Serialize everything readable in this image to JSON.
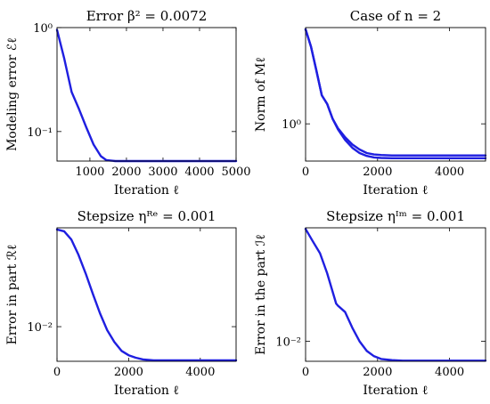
{
  "chart_data": [
    {
      "type": "line",
      "title": "Error β² = 0.0072",
      "xlabel": "Iteration ℓ",
      "ylabel": "Modeling error ℰℓ",
      "xscale": "linear",
      "yscale": "log",
      "xlim": [
        100,
        5000
      ],
      "ylim": [
        0.052,
        1
      ],
      "xticks": [
        1000,
        2000,
        3000,
        4000,
        5000
      ],
      "xtick_labels": [
        "1000",
        "2000",
        "3000",
        "4000",
        "5000"
      ],
      "yticks": [
        0.1,
        1
      ],
      "ytick_labels": [
        "10⁻¹",
        "10⁰"
      ],
      "grid": false,
      "color": "#1f1fe0",
      "series": [
        {
          "x": [
            100,
            300,
            500,
            700,
            900,
            1100,
            1300,
            1450,
            1700,
            2000,
            3000,
            4000,
            5000
          ],
          "y": [
            0.95,
            0.5,
            0.24,
            0.165,
            0.11,
            0.075,
            0.058,
            0.053,
            0.052,
            0.052,
            0.052,
            0.052,
            0.052
          ]
        }
      ]
    },
    {
      "type": "line",
      "title": "Case of n = 2",
      "xlabel": "Iteration ℓ",
      "ylabel": "Norm of Mℓ",
      "xscale": "linear",
      "yscale": "log",
      "xlim": [
        0,
        5000
      ],
      "ylim": [
        0.5,
        6
      ],
      "xticks": [
        0,
        2000,
        4000
      ],
      "xtick_labels": [
        "0",
        "2000",
        "4000"
      ],
      "yticks": [
        1
      ],
      "ytick_labels": [
        "10⁰"
      ],
      "grid": false,
      "color": "#1f1fe0",
      "series": [
        {
          "x": [
            0,
            150,
            300,
            450,
            600,
            750,
            900,
            1100,
            1300,
            1500,
            1700,
            1900,
            2100,
            2400,
            3000,
            4000,
            5000
          ],
          "y": [
            5.8,
            4.2,
            2.7,
            1.7,
            1.45,
            1.1,
            0.92,
            0.78,
            0.68,
            0.62,
            0.58,
            0.565,
            0.56,
            0.555,
            0.555,
            0.555,
            0.555
          ]
        },
        {
          "x": [
            0,
            150,
            300,
            450,
            600,
            750,
            900,
            1100,
            1300,
            1500,
            1700,
            1900,
            2100,
            2400,
            3000,
            4000,
            5000
          ],
          "y": [
            5.8,
            4.2,
            2.7,
            1.7,
            1.45,
            1.1,
            0.9,
            0.74,
            0.64,
            0.58,
            0.55,
            0.535,
            0.53,
            0.527,
            0.527,
            0.527,
            0.527
          ]
        }
      ]
    },
    {
      "type": "line",
      "title": "Stepsize ηᴿᵉ = 0.001",
      "xlabel": "Iteration ℓ",
      "ylabel": "Error in part ℛℓ",
      "xscale": "linear",
      "yscale": "log",
      "xlim": [
        0,
        5000
      ],
      "ylim": [
        0.0035,
        0.2
      ],
      "xticks": [
        0,
        2000,
        4000
      ],
      "xtick_labels": [
        "0",
        "2000",
        "4000"
      ],
      "yticks": [
        0.01
      ],
      "ytick_labels": [
        "10⁻²"
      ],
      "grid": false,
      "color": "#1f1fe0",
      "series": [
        {
          "x": [
            0,
            200,
            400,
            600,
            800,
            1000,
            1200,
            1400,
            1600,
            1800,
            2000,
            2200,
            2400,
            2700,
            3000,
            4000,
            5000
          ],
          "y": [
            0.19,
            0.18,
            0.14,
            0.088,
            0.05,
            0.027,
            0.015,
            0.009,
            0.0063,
            0.0048,
            0.0042,
            0.0039,
            0.0037,
            0.0036,
            0.0036,
            0.0036,
            0.0036
          ]
        }
      ]
    },
    {
      "type": "line",
      "title": "Stepsize ηᴵᵐ = 0.001",
      "xlabel": "Iteration ℓ",
      "ylabel": "Error in the part ℐℓ",
      "xscale": "linear",
      "yscale": "log",
      "xlim": [
        0,
        5000
      ],
      "ylim": [
        0.0055,
        0.3
      ],
      "xticks": [
        0,
        2000,
        4000
      ],
      "xtick_labels": [
        "0",
        "2000",
        "4000"
      ],
      "yticks": [
        0.01
      ],
      "ytick_labels": [
        "10⁻²"
      ],
      "grid": false,
      "color": "#1f1fe0",
      "series": [
        {
          "x": [
            0,
            200,
            400,
            600,
            850,
            900,
            1100,
            1300,
            1500,
            1700,
            1900,
            2100,
            2400,
            2700,
            3000,
            4000,
            5000
          ],
          "y": [
            0.29,
            0.2,
            0.14,
            0.077,
            0.031,
            0.029,
            0.024,
            0.015,
            0.01,
            0.0075,
            0.0064,
            0.0059,
            0.0057,
            0.0056,
            0.0056,
            0.0056,
            0.0056
          ]
        }
      ]
    }
  ]
}
